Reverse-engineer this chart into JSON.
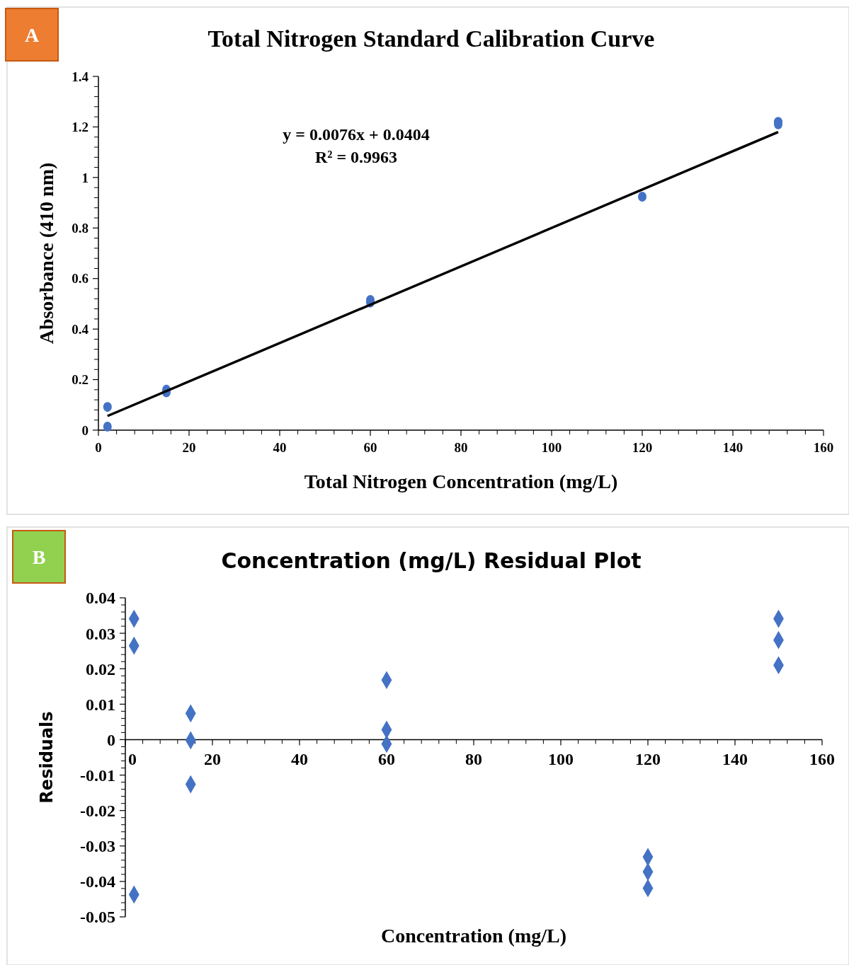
{
  "chart_data": [
    {
      "type": "scatter",
      "title": "Total Nitrogen Standard Calibration Curve",
      "xlabel": "Total Nitrogen Concentration (mg/L)",
      "ylabel": "Absorbance (410 nm)",
      "annotations": [
        "A",
        "y = 0.0076x + 0.0404",
        "R² = 0.9963"
      ],
      "xlim": [
        0,
        160
      ],
      "xticks": [
        0,
        20,
        40,
        60,
        80,
        100,
        120,
        140,
        160
      ],
      "ylim": [
        0,
        1.4
      ],
      "yticks": [
        0,
        0.2,
        0.4,
        0.6,
        0.8,
        1,
        1.2,
        1.4
      ],
      "grid": false,
      "marker": "circle",
      "series": [
        {
          "color": "#4472c4",
          "x": [
            2,
            2,
            15,
            15,
            60,
            60,
            120,
            150,
            150
          ],
          "values": [
            0.092,
            0.014,
            0.16,
            0.15,
            0.515,
            0.505,
            0.924,
            1.22,
            1.21
          ]
        },
        {
          "type": "line",
          "color": "#000000",
          "marker": "none",
          "line_style": "solid",
          "x": [
            2,
            150
          ],
          "values": [
            0.056,
            1.18
          ]
        }
      ]
    },
    {
      "type": "scatter",
      "title": "Concentration (mg/L)  Residual Plot",
      "xlabel": "Concentration (mg/L)",
      "ylabel": "Residuals",
      "annotations": [
        "B"
      ],
      "xlim": [
        0,
        160
      ],
      "xticks": [
        0,
        20,
        40,
        60,
        80,
        100,
        120,
        140,
        160
      ],
      "ylim": [
        -0.05,
        0.04
      ],
      "yticks": [
        -0.05,
        -0.04,
        -0.03,
        -0.02,
        -0.01,
        0,
        0.01,
        0.02,
        0.03,
        0.04
      ],
      "grid": false,
      "marker": "diamond",
      "series": [
        {
          "color": "#4472c4",
          "x": [
            2,
            2,
            2,
            15,
            15,
            15,
            60,
            60,
            60,
            120,
            120,
            120,
            150,
            150,
            150
          ],
          "values": [
            0.0341,
            0.0265,
            -0.0437,
            0.0074,
            -0.0002,
            -0.0126,
            0.0168,
            0.0028,
            -0.0012,
            -0.0331,
            -0.0373,
            -0.0419,
            0.0341,
            0.0281,
            0.021
          ]
        }
      ]
    }
  ]
}
